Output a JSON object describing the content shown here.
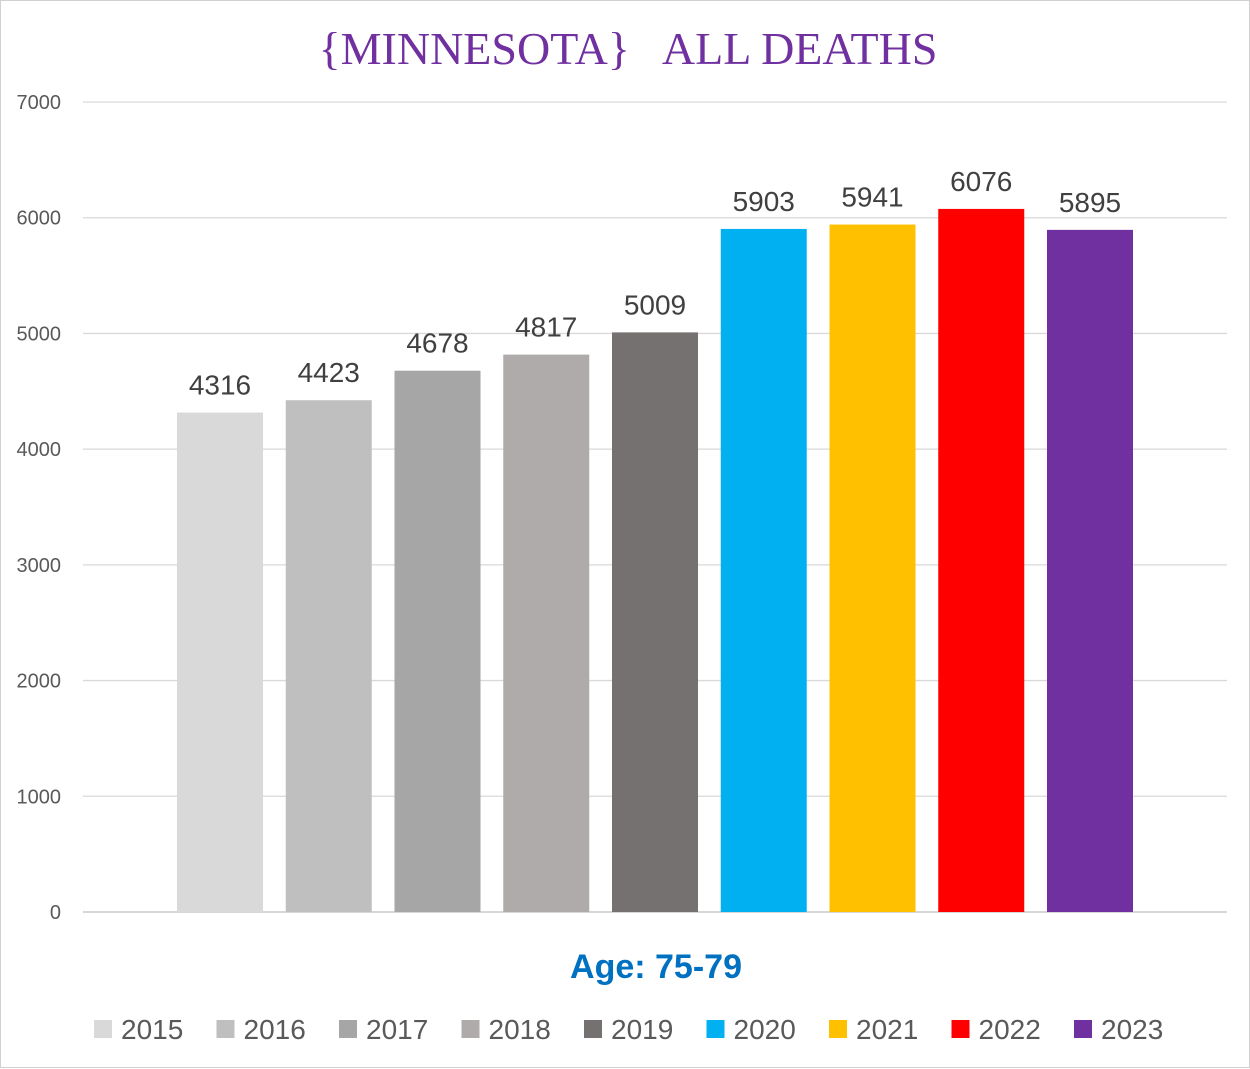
{
  "chart_data": {
    "type": "bar",
    "title": "{MINNESOTA}   ALL DEATHS",
    "xlabel": "Age: 75-79",
    "ylabel": "",
    "ylim": [
      0,
      7000
    ],
    "yticks": [
      0,
      1000,
      2000,
      3000,
      4000,
      5000,
      6000,
      7000
    ],
    "grid": true,
    "legend_position": "bottom",
    "categories": [
      "2015",
      "2016",
      "2017",
      "2018",
      "2019",
      "2020",
      "2021",
      "2022",
      "2023"
    ],
    "values": [
      4316,
      4423,
      4678,
      4817,
      5009,
      5903,
      5941,
      6076,
      5895
    ],
    "colors": [
      "#d9d9d9",
      "#bfbfbf",
      "#a6a6a6",
      "#afabab",
      "#767171",
      "#00b0f0",
      "#ffc000",
      "#ff0000",
      "#7030a0"
    ],
    "title_color": "#7030a0",
    "xlabel_color": "#0070c0"
  }
}
